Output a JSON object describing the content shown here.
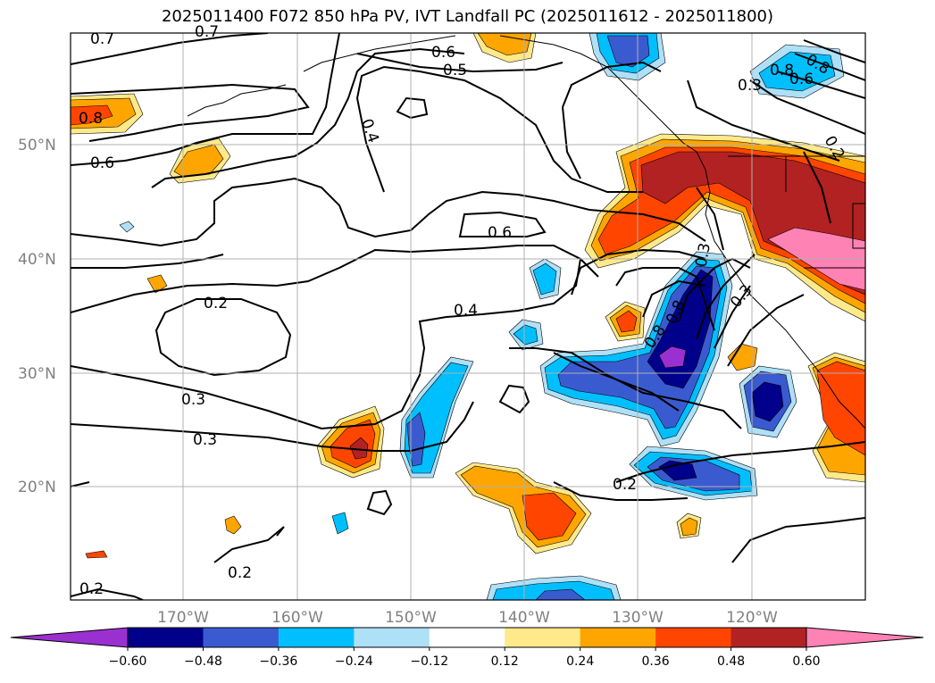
{
  "title": "2025011400 F072 850 hPa PV, IVT Landfall PC (2025011612 - 2025011800)",
  "latitude_labels": [
    "50°N",
    "40°N",
    "30°N",
    "20°N"
  ],
  "longitude_labels": [
    "170°W",
    "160°W",
    "150°W",
    "140°W",
    "130°W",
    "120°W"
  ],
  "contour_labels": [
    "0.7",
    "0.7",
    "0.6",
    "0.5",
    "0.4",
    "0.8",
    "0.6",
    "0.6",
    "0.4",
    "0.2",
    "0.3",
    "0.3",
    "0.2",
    "0.2",
    "0.2",
    "0.8",
    "0.8",
    "0.3",
    "0.3",
    "0.2",
    "0.8",
    "0.6",
    "0.8",
    "0.3"
  ],
  "colorbar": {
    "ticks": [
      "−0.60",
      "−0.48",
      "−0.36",
      "−0.24",
      "−0.12",
      "0.12",
      "0.24",
      "0.36",
      "0.48",
      "0.60"
    ],
    "colors": [
      "#9b30d0",
      "#00008b",
      "#3a5bd0",
      "#00bfff",
      "#aee0f8",
      "#ffffff",
      "#ffe98a",
      "#ffa500",
      "#ff4500",
      "#b22222",
      "#ff82b4"
    ]
  },
  "shading_colors": {
    "neg_060": "#9b30d0",
    "neg_048": "#00008b",
    "neg_036": "#3a5bd0",
    "neg_024": "#00bfff",
    "neg_012": "#aee0f8",
    "pos_012": "#ffe98a",
    "pos_024": "#ffa500",
    "pos_036": "#ff4500",
    "pos_048": "#b22222",
    "pos_060": "#ff82b4"
  }
}
